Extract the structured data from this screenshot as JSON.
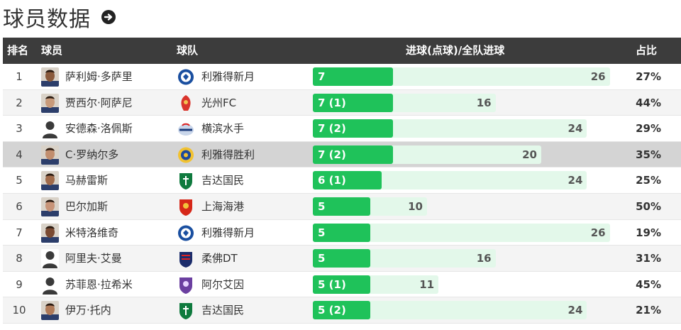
{
  "page_title": "球员数据",
  "header": {
    "rank": "排名",
    "player": "球员",
    "team": "球队",
    "goals": "进球(点球)/全队进球",
    "pct": "占比"
  },
  "colors": {
    "header_bg": "#3c3c3c",
    "bar_fill": "#1fc25a",
    "bar_track": "#e3f8ea"
  },
  "rows": [
    {
      "rank": "1",
      "player": "萨利姆·多萨里",
      "team": "利雅得新月",
      "goals_label": "7",
      "goals": 7,
      "team_total": 26,
      "pct": "27%",
      "avatar": "photo",
      "logo": "al-hilal-logo"
    },
    {
      "rank": "2",
      "player": "贾西尔·阿萨尼",
      "team": "光州FC",
      "goals_label": "7 (1)",
      "goals": 7,
      "team_total": 16,
      "pct": "44%",
      "avatar": "photo",
      "logo": "gwangju-logo"
    },
    {
      "rank": "3",
      "player": "安德森·洛佩斯",
      "team": "横滨水手",
      "goals_label": "7 (2)",
      "goals": 7,
      "team_total": 24,
      "pct": "29%",
      "avatar": "silhouette",
      "logo": "yokohama-logo"
    },
    {
      "rank": "4",
      "player": "C·罗纳尔多",
      "team": "利雅得胜利",
      "goals_label": "7 (2)",
      "goals": 7,
      "team_total": 20,
      "pct": "35%",
      "avatar": "photo",
      "logo": "al-nassr-logo"
    },
    {
      "rank": "5",
      "player": "马赫雷斯",
      "team": "吉达国民",
      "goals_label": "6 (1)",
      "goals": 6,
      "team_total": 24,
      "pct": "25%",
      "avatar": "photo",
      "logo": "al-ahli-logo"
    },
    {
      "rank": "6",
      "player": "巴尔加斯",
      "team": "上海海港",
      "goals_label": "5",
      "goals": 5,
      "team_total": 10,
      "pct": "50%",
      "avatar": "photo",
      "logo": "shanghai-port-logo"
    },
    {
      "rank": "7",
      "player": "米特洛维奇",
      "team": "利雅得新月",
      "goals_label": "5",
      "goals": 5,
      "team_total": 26,
      "pct": "19%",
      "avatar": "photo",
      "logo": "al-hilal-logo"
    },
    {
      "rank": "8",
      "player": "阿里夫·艾曼",
      "team": "柔佛DT",
      "goals_label": "5",
      "goals": 5,
      "team_total": 16,
      "pct": "31%",
      "avatar": "silhouette",
      "logo": "johor-logo"
    },
    {
      "rank": "9",
      "player": "苏菲恩·拉希米",
      "team": "阿尔艾因",
      "goals_label": "5 (1)",
      "goals": 5,
      "team_total": 11,
      "pct": "45%",
      "avatar": "silhouette",
      "logo": "al-ain-logo"
    },
    {
      "rank": "10",
      "player": "伊万·托内",
      "team": "吉达国民",
      "goals_label": "5 (2)",
      "goals": 5,
      "team_total": 24,
      "pct": "21%",
      "avatar": "photo",
      "logo": "al-ahli-logo"
    }
  ]
}
